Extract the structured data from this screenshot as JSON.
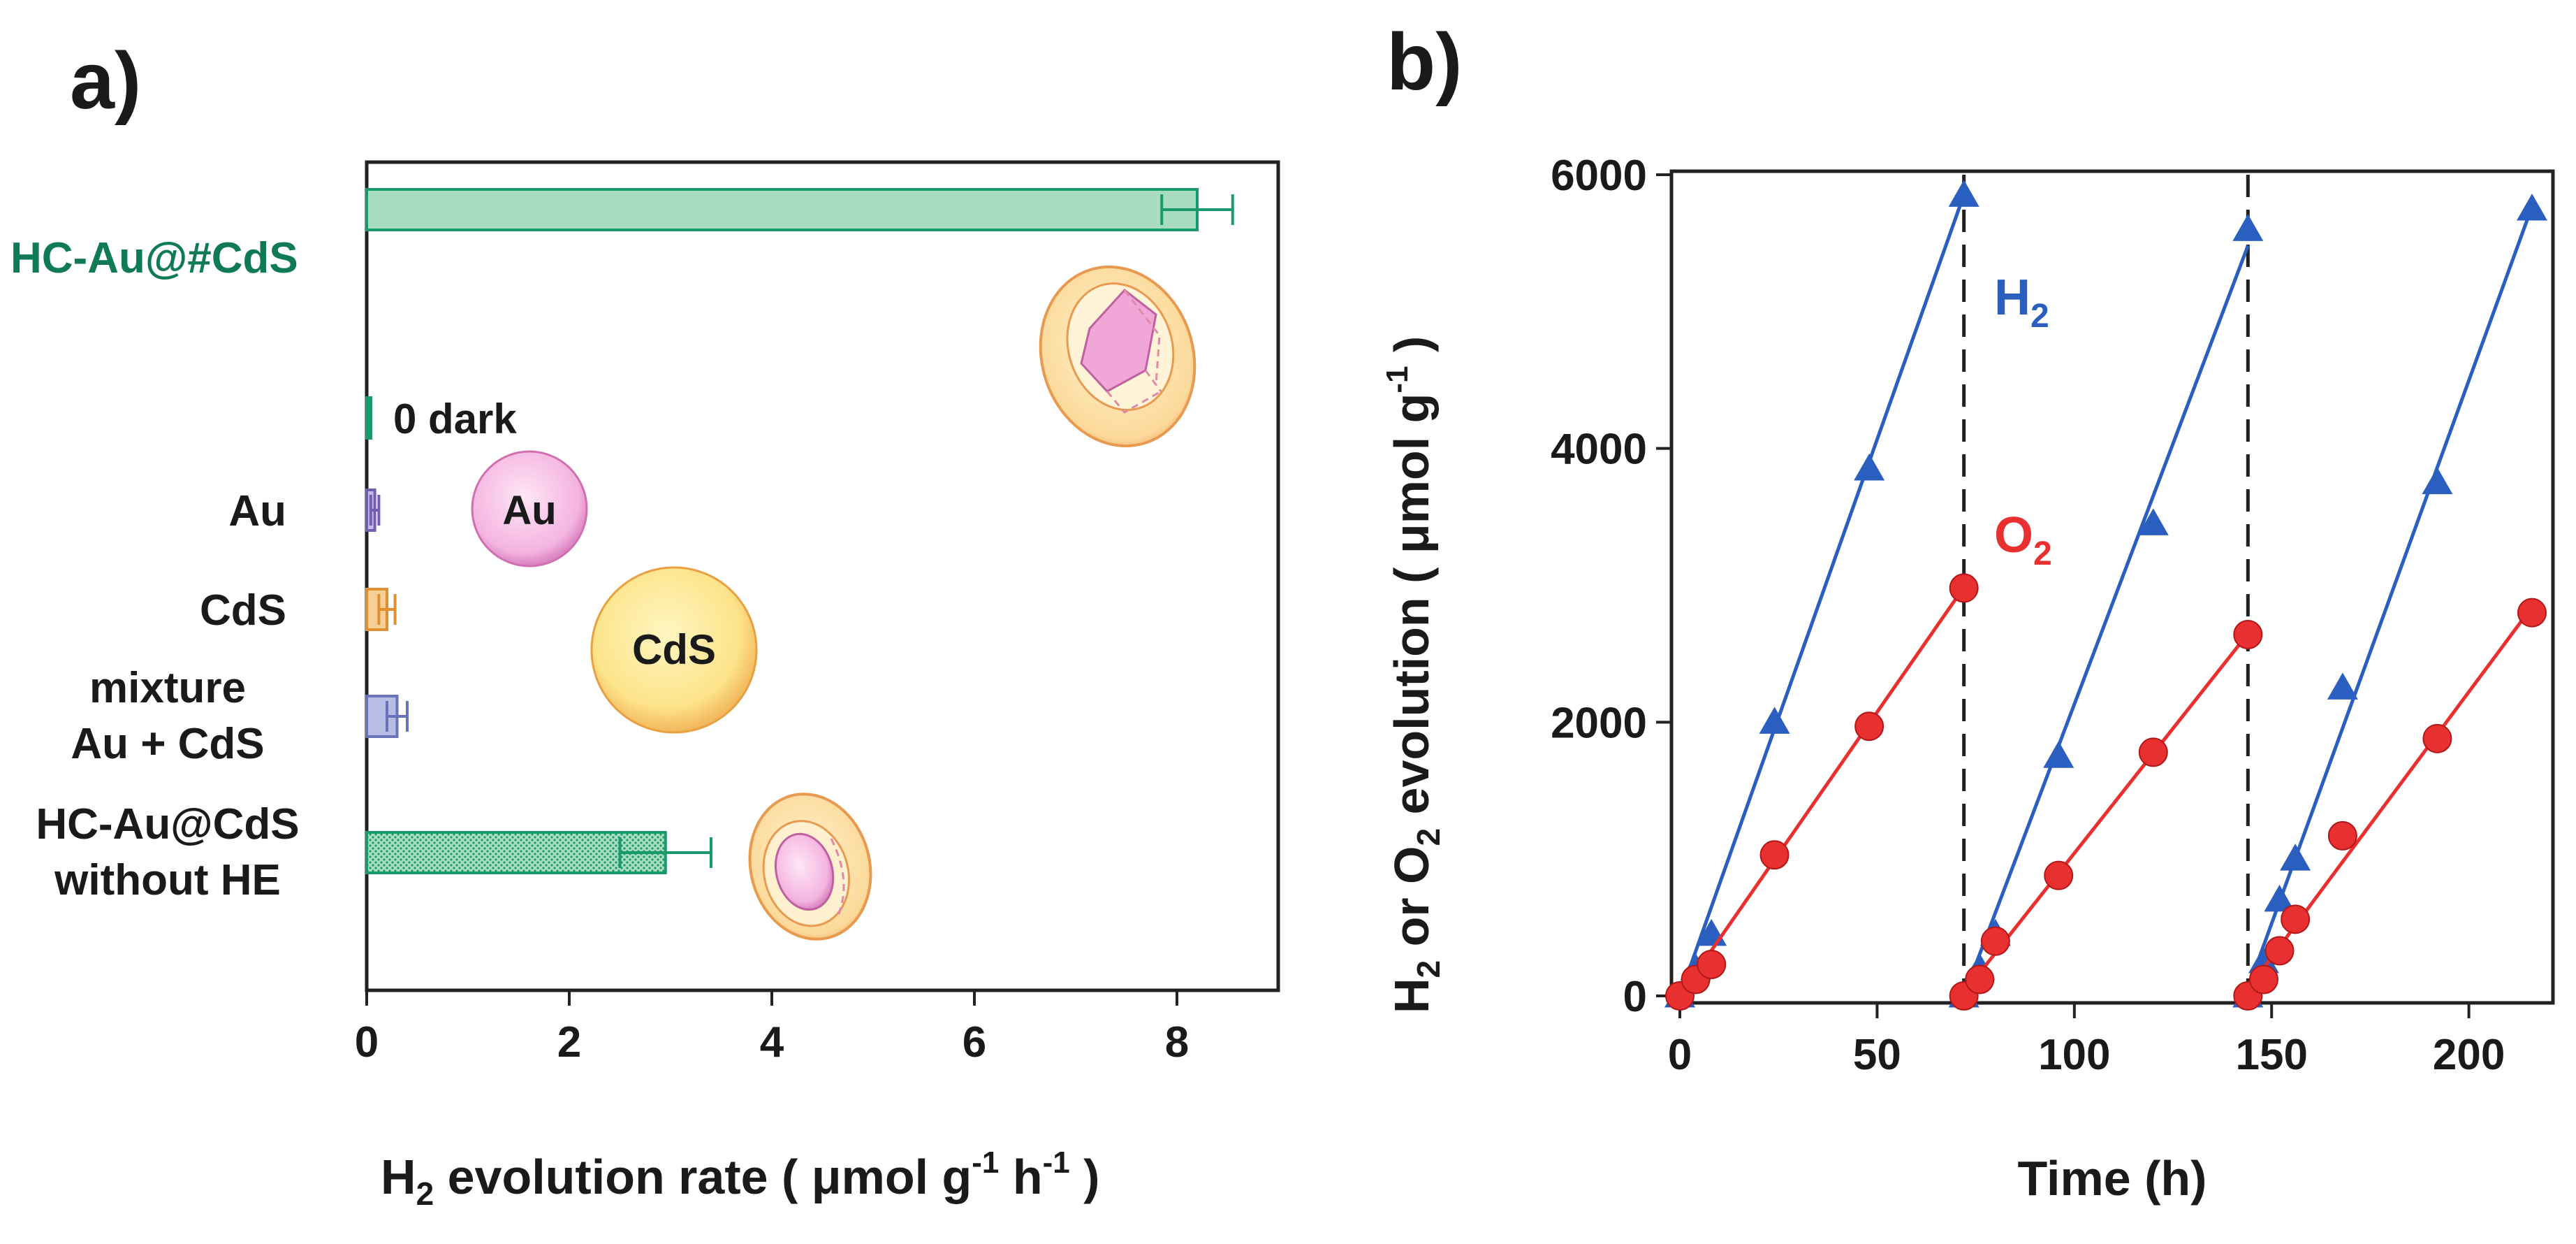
{
  "chart_data": [
    {
      "type": "bar",
      "panel_label": "a)",
      "orientation": "horizontal",
      "xlim": [
        0,
        9
      ],
      "xticks": [
        0,
        2,
        4,
        6,
        8
      ],
      "xlabel_main": "H",
      "xlabel_sub": "2",
      "xlabel_rest": " evolution rate ( μmol g",
      "xlabel_sup1": "-1",
      "xlabel_mid": " h",
      "xlabel_sup2": "-1",
      "xlabel_end": " )",
      "bars": [
        {
          "label_lines": [
            "HC-Au@#CdS"
          ],
          "value": 8.2,
          "error": 0.35,
          "color": "#1a9a6a",
          "fill": "#a8dcc0",
          "label_color": "#0f7a55",
          "dense": false
        },
        {
          "label_lines": [],
          "value": 0.04,
          "error": 0,
          "color": "#1a9a6a",
          "fill": "#1a9a6a",
          "annotation": "0  dark",
          "dense": false
        },
        {
          "label_lines": [
            "Au"
          ],
          "value": 0.08,
          "error": 0.04,
          "color": "#7060b0",
          "fill": "#c9b8e8",
          "dense": false
        },
        {
          "label_lines": [
            "CdS"
          ],
          "value": 0.2,
          "error": 0.08,
          "color": "#e09030",
          "fill": "#f5cf95",
          "dense": false
        },
        {
          "label_lines": [
            "mixture",
            "Au + CdS"
          ],
          "value": 0.3,
          "error": 0.1,
          "color": "#6a72b8",
          "fill": "#b8bde6",
          "dense": false
        },
        {
          "label_lines": [
            "HC-Au@CdS",
            "without HE"
          ],
          "value": 2.95,
          "error": 0.45,
          "color": "#1a9a6a",
          "fill": "#a8dcc0",
          "dense": true
        }
      ],
      "illustrations": {
        "au_sphere_label": "Au",
        "cds_sphere_label": "CdS"
      }
    },
    {
      "type": "line",
      "panel_label": "b)",
      "xlim": [
        0,
        216
      ],
      "ylim": [
        0,
        6000
      ],
      "xticks": [
        0,
        50,
        100,
        150,
        200
      ],
      "yticks": [
        0,
        2000,
        4000,
        6000
      ],
      "xlabel": "Time (h)",
      "ylabel_a": "H",
      "ylabel_sub": "2",
      "ylabel_b": " or O",
      "ylabel_sub2": "2",
      "ylabel_c": " evolution ( μmol g",
      "ylabel_sup": "-1",
      "ylabel_d": " )",
      "cycle_dividers": [
        72,
        144
      ],
      "series": [
        {
          "name": "H",
          "name_sub": "2",
          "color": "#2a5fc0",
          "marker": "triangle",
          "cycles": [
            {
              "x": [
                0,
                4,
                8,
                24,
                48,
                72
              ],
              "y": [
                0,
                200,
                450,
                2000,
                3850,
                5850
              ]
            },
            {
              "x": [
                72,
                76,
                80,
                96,
                120,
                144
              ],
              "y": [
                0,
                200,
                450,
                1750,
                3450,
                5600
              ]
            },
            {
              "x": [
                144,
                148,
                152,
                156,
                168,
                192,
                216
              ],
              "y": [
                0,
                250,
                700,
                1000,
                2250,
                3750,
                5750
              ]
            }
          ]
        },
        {
          "name": "O",
          "name_sub": "2",
          "color": "#e83030",
          "marker": "circle",
          "cycles": [
            {
              "x": [
                0,
                4,
                8,
                24,
                48,
                72
              ],
              "y": [
                0,
                120,
                230,
                1030,
                1970,
                2980
              ]
            },
            {
              "x": [
                72,
                76,
                80,
                96,
                120,
                144
              ],
              "y": [
                0,
                120,
                400,
                880,
                1780,
                2640
              ]
            },
            {
              "x": [
                144,
                148,
                152,
                156,
                168,
                192,
                216
              ],
              "y": [
                0,
                120,
                330,
                560,
                1170,
                1880,
                2800
              ]
            }
          ]
        }
      ]
    }
  ]
}
